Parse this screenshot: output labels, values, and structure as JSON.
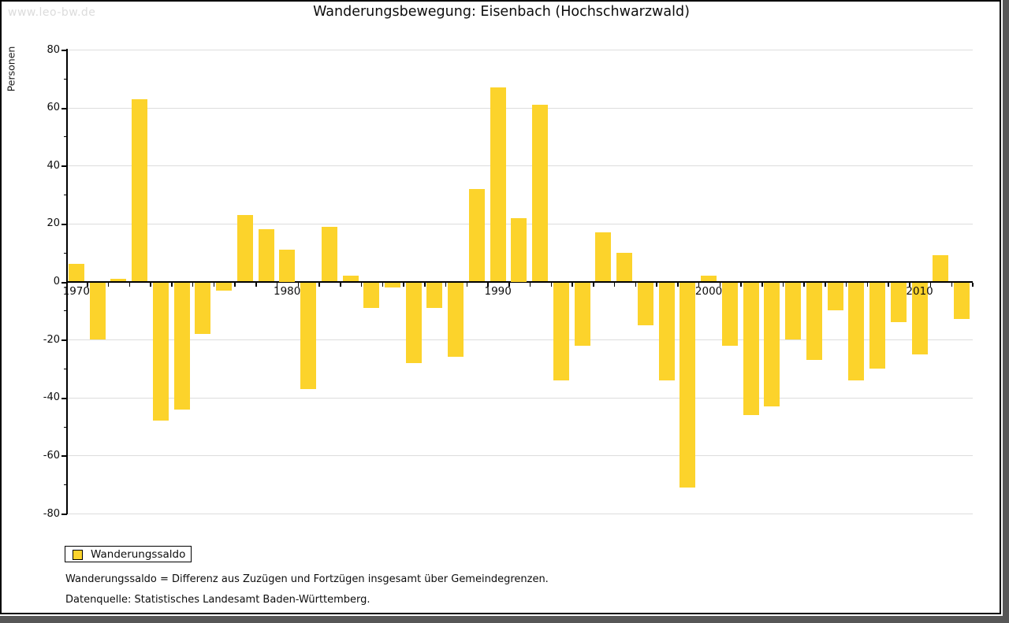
{
  "watermark": "www.leo-bw.de",
  "title": "Wanderungsbewegung: Eisenbach (Hochschwarzwald)",
  "y_axis_label": "Personen",
  "legend": {
    "label": "Wanderungssaldo"
  },
  "footnotes": [
    "Wanderungssaldo = Differenz aus Zuzügen und Fortzügen insgesamt über Gemeindegrenzen.",
    "Datenquelle: Statistisches Landesamt Baden-Württemberg."
  ],
  "colors": {
    "bar": "#fcd32b",
    "gridline": "#dddddd",
    "axis": "#000000",
    "watermark": "#dcdcdc",
    "frame_shadow": "#575757"
  },
  "chart_data": {
    "type": "bar",
    "title": "Wanderungsbewegung: Eisenbach (Hochschwarzwald)",
    "xlabel": "",
    "ylabel": "Personen",
    "series_name": "Wanderungssaldo",
    "ylim": [
      -80,
      80
    ],
    "y_ticks": [
      80,
      60,
      40,
      20,
      0,
      -20,
      -40,
      -60,
      -80
    ],
    "y_minor_tick_step": 10,
    "x_tick_labels": [
      "1970",
      "1980",
      "1990",
      "2000",
      "2010"
    ],
    "grid": "horizontal",
    "legend_position": "bottom-left",
    "years": [
      1970,
      1971,
      1972,
      1973,
      1974,
      1975,
      1976,
      1977,
      1978,
      1979,
      1980,
      1981,
      1982,
      1983,
      1984,
      1985,
      1986,
      1987,
      1988,
      1989,
      1990,
      1991,
      1992,
      1993,
      1994,
      1995,
      1996,
      1997,
      1998,
      1999,
      2000,
      2001,
      2002,
      2003,
      2004,
      2005,
      2006,
      2007,
      2008,
      2009,
      2010,
      2011,
      2012
    ],
    "values": [
      6,
      -20,
      1,
      63,
      -48,
      -44,
      -18,
      -3,
      23,
      18,
      11,
      -37,
      19,
      2,
      -9,
      -2,
      -28,
      -9,
      -26,
      32,
      67,
      22,
      61,
      -34,
      -22,
      17,
      10,
      -15,
      -34,
      -71,
      2,
      -22,
      -46,
      -43,
      -20,
      -27,
      -10,
      -34,
      -30,
      -14,
      -25,
      9,
      -13
    ]
  }
}
